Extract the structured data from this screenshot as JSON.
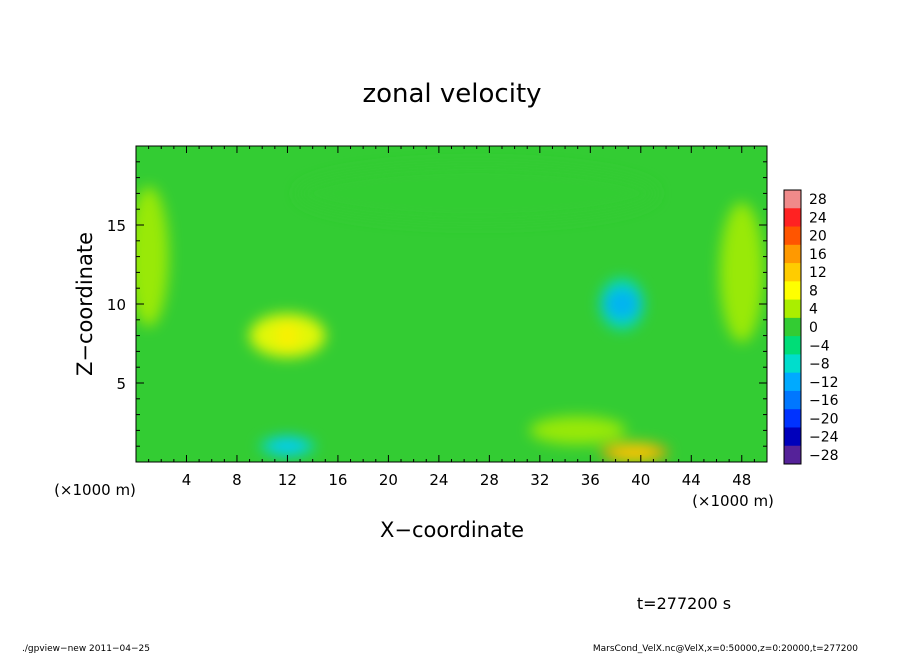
{
  "chart_data": {
    "type": "heatmap",
    "title": "zonal velocity",
    "xlabel": "X−coordinate",
    "ylabel": "Z−coordinate",
    "x_unit_left": "(×1000 m)",
    "x_unit_right": "(×1000 m)",
    "xlim": [
      0,
      50
    ],
    "ylim": [
      0,
      20
    ],
    "x_ticks": [
      4,
      8,
      12,
      16,
      20,
      24,
      28,
      32,
      36,
      40,
      44,
      48
    ],
    "x_tick_labels": [
      "4",
      "8",
      "12",
      "16",
      "20",
      "24",
      "28",
      "32",
      "36",
      "40",
      "44",
      "48"
    ],
    "y_ticks": [
      5,
      10,
      15
    ],
    "y_tick_labels": [
      "5",
      "10",
      "15"
    ],
    "colorbar": {
      "levels": [
        28,
        24,
        20,
        16,
        12,
        8,
        4,
        0,
        -4,
        -8,
        -12,
        -16,
        -20,
        -24,
        -28
      ],
      "labels": [
        "28",
        "24",
        "20",
        "16",
        "12",
        "8",
        "4",
        "0",
        "−4",
        "−8",
        "−12",
        "−16",
        "−20",
        "−24",
        "−28"
      ],
      "colors": [
        "#f08a8a",
        "#ff2222",
        "#ff5500",
        "#ff9900",
        "#ffcc00",
        "#ffff00",
        "#aaee00",
        "#33cc33",
        "#00dd77",
        "#00ddcc",
        "#00aaff",
        "#0077ff",
        "#0033ff",
        "#0000bb",
        "#552299"
      ]
    },
    "field_features": [
      {
        "kind": "background",
        "value": 0
      },
      {
        "kind": "positive",
        "x": 12,
        "z": 8,
        "value": 8
      },
      {
        "kind": "negative",
        "x": 38.5,
        "z": 10,
        "value": -10
      },
      {
        "kind": "negative",
        "x": 12,
        "z": 1,
        "value": -10
      },
      {
        "kind": "positive",
        "x": 39.5,
        "z": 0.6,
        "value": 16
      },
      {
        "kind": "positive",
        "x": 35,
        "z": 2,
        "value": 5
      },
      {
        "kind": "negative",
        "x": 27,
        "z": 17,
        "value": -2
      },
      {
        "kind": "positive",
        "x": 48,
        "z": 12,
        "value": 4
      },
      {
        "kind": "positive",
        "x": 1,
        "z": 13,
        "value": 4
      }
    ]
  },
  "annotations": {
    "time": "t=277200 s",
    "footer_left": "./gpview−new   2011−04−25",
    "footer_right": "MarsCond_VelX.nc@VelX,x=0:50000,z=0:20000,t=277200"
  }
}
